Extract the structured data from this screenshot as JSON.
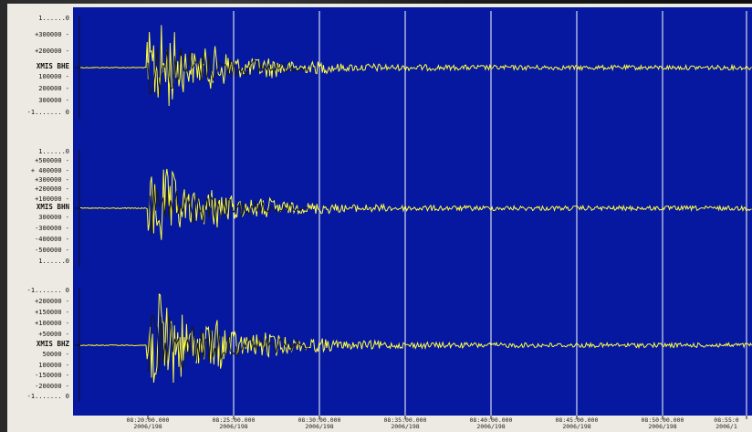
{
  "chart_data": {
    "type": "line",
    "background_color": "#0618a0",
    "trace_color": "#ffff44",
    "gridline_color": "#ffffff",
    "x_ticks": [
      {
        "time": "08:20:00.000",
        "date": "2006/198"
      },
      {
        "time": "08:25:00.000",
        "date": "2006/198"
      },
      {
        "time": "08:30:00.000",
        "date": "2006/198"
      },
      {
        "time": "08:35:00.000",
        "date": "2006/198"
      },
      {
        "time": "08:40:00.000",
        "date": "2006/198"
      },
      {
        "time": "08:45:00.000",
        "date": "2006/198"
      },
      {
        "time": "08:50:00.000",
        "date": "2006/198"
      },
      {
        "time": "08:55:0",
        "date": "2006/1"
      }
    ],
    "series": [
      {
        "name": "XMIS BHE",
        "y_labels_above": [
          "1......0",
          "+300000 -",
          "+200000 -"
        ],
        "y_labels_below": [
          "100000 -",
          "200000 -",
          "300000 -",
          "-1....... 0"
        ],
        "amplitude": 0.55
      },
      {
        "name": "XMIS BHN",
        "y_labels_above": [
          "1......0",
          "+500000 -",
          "+ 400000 -",
          "+300000 -",
          "+200000 -",
          "+100000 -"
        ],
        "y_labels_below": [
          "300000 -",
          "-300000 -",
          "-400000 -",
          "-500000 -",
          "1......0"
        ],
        "amplitude": 0.45
      },
      {
        "name": "XMIS BHZ",
        "y_labels_above": [
          "-1....... 0",
          "+200000 -",
          "+150000 -",
          "+100000 -",
          "+50000 -"
        ],
        "y_labels_below": [
          "50000 -",
          "100000 -",
          "-150000 -",
          "-200000 -",
          "-1....... 0"
        ],
        "amplitude": 0.6
      }
    ]
  }
}
